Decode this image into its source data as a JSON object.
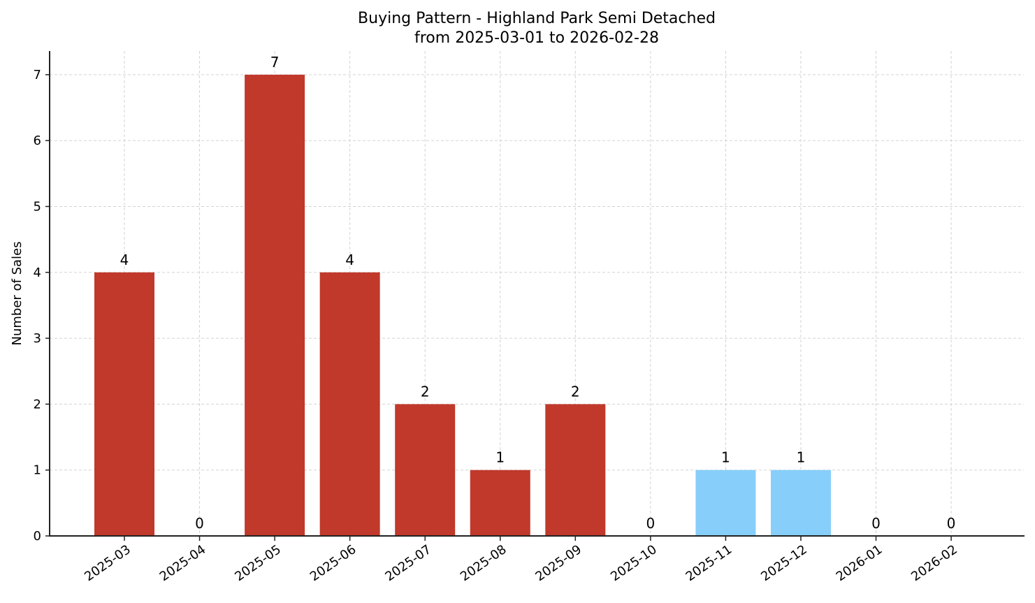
{
  "chart_data": {
    "type": "bar",
    "title": "Buying Pattern - Highland Park Semi Detached",
    "subtitle": "from 2025-03-01 to 2026-02-28",
    "xlabel": "",
    "ylabel": "Number of Sales",
    "categories": [
      "2025-03",
      "2025-04",
      "2025-05",
      "2025-06",
      "2025-07",
      "2025-08",
      "2025-09",
      "2025-10",
      "2025-11",
      "2025-12",
      "2026-01",
      "2026-02"
    ],
    "values": [
      4,
      0,
      7,
      4,
      2,
      1,
      2,
      0,
      1,
      1,
      0,
      0
    ],
    "bar_colors": [
      "#c0392b",
      "#c0392b",
      "#c0392b",
      "#c0392b",
      "#c0392b",
      "#c0392b",
      "#c0392b",
      "#c0392b",
      "#87cefa",
      "#87cefa",
      "#87cefa",
      "#87cefa"
    ],
    "yticks": [
      0,
      1,
      2,
      3,
      4,
      5,
      6,
      7
    ],
    "ylim": [
      0,
      7.35
    ],
    "grid": true,
    "legend": null,
    "data_labels": true
  },
  "colors": {
    "primary_bar": "#c0392b",
    "secondary_bar": "#87cefa",
    "grid": "#d3d3d3",
    "axis": "#222222"
  }
}
